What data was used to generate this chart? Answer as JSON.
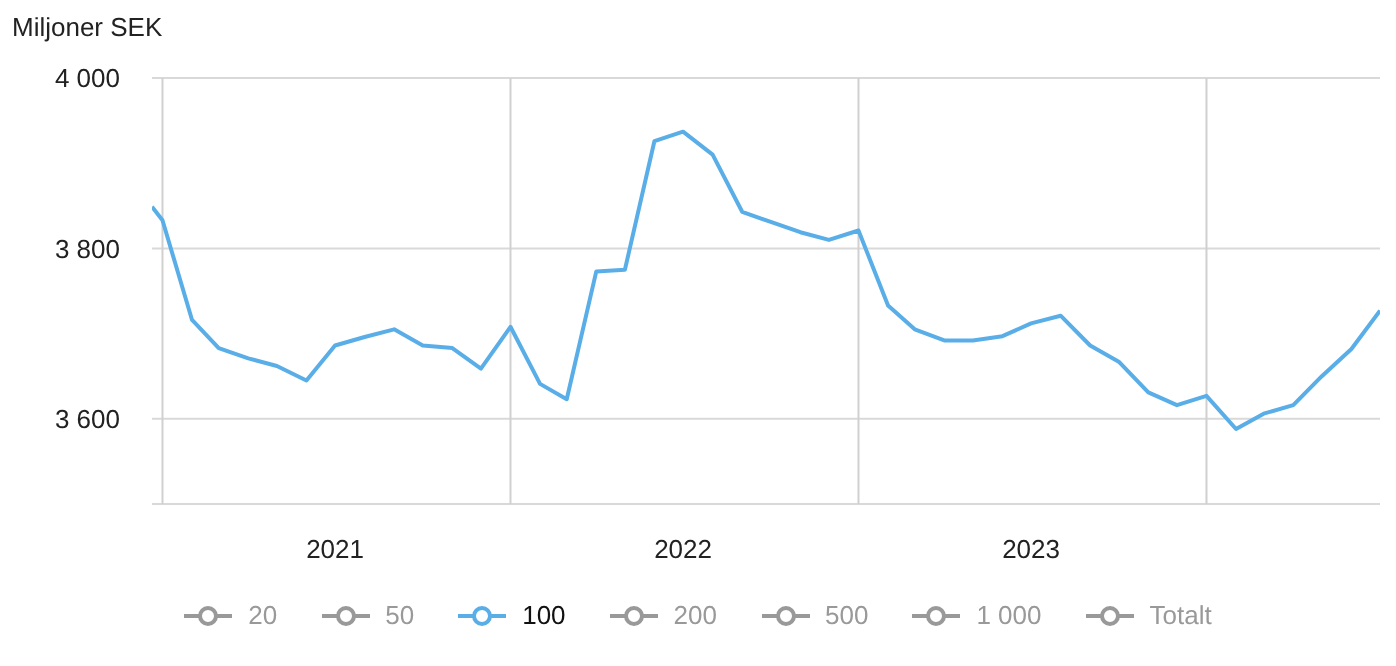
{
  "chart_data": {
    "type": "line",
    "ylabel": "Miljoner SEK",
    "x": [
      "2020-12-21",
      "2021-01",
      "2021-02",
      "2021-03",
      "2021-04",
      "2021-05",
      "2021-06",
      "2021-07",
      "2021-08",
      "2021-09",
      "2021-10",
      "2021-11",
      "2021-12",
      "2022-01",
      "2022-02",
      "2022-03",
      "2022-04",
      "2022-05",
      "2022-06",
      "2022-07",
      "2022-08",
      "2022-09",
      "2022-10",
      "2022-11",
      "2022-12",
      "2023-01",
      "2023-02",
      "2023-03",
      "2023-04",
      "2023-05",
      "2023-06",
      "2023-07",
      "2023-08",
      "2023-09",
      "2023-10",
      "2023-11",
      "2023-12",
      "2024-01",
      "2024-02",
      "2024-03",
      "2024-04",
      "2024-05",
      "2024-06",
      "2024-07"
    ],
    "series": [
      {
        "name": "20",
        "color": "#999999",
        "values": [
          null,
          null,
          null,
          null,
          null,
          null,
          null,
          null,
          null,
          null,
          null,
          null,
          null,
          null,
          null,
          null,
          null,
          null,
          null,
          null,
          null,
          null,
          null,
          null,
          null,
          null,
          null,
          null,
          null,
          null,
          null,
          null,
          null,
          null,
          null,
          null,
          null,
          null,
          null,
          null,
          null,
          null,
          null,
          null
        ]
      },
      {
        "name": "50",
        "color": "#999999",
        "values": [
          null,
          null,
          null,
          null,
          null,
          null,
          null,
          null,
          null,
          null,
          null,
          null,
          null,
          null,
          null,
          null,
          null,
          null,
          null,
          null,
          null,
          null,
          null,
          null,
          null,
          null,
          null,
          null,
          null,
          null,
          null,
          null,
          null,
          null,
          null,
          null,
          null,
          null,
          null,
          null,
          null,
          null,
          null,
          null
        ]
      },
      {
        "name": "100",
        "color": "#5aaee8",
        "values": [
          3849,
          3833,
          3716,
          3683,
          3671,
          3662,
          3645,
          3686,
          3696,
          3705,
          3686,
          3683,
          3659,
          3708,
          3641,
          3623,
          3773,
          3775,
          3926,
          3937,
          3910,
          3843,
          3831,
          3819,
          3810,
          3821,
          3733,
          3705,
          3692,
          3692,
          3697,
          3712,
          3721,
          3686,
          3667,
          3631,
          3616,
          3627,
          3588,
          3606,
          3616,
          3650,
          3682,
          3727
        ]
      },
      {
        "name": "200",
        "color": "#999999",
        "values": [
          null,
          null,
          null,
          null,
          null,
          null,
          null,
          null,
          null,
          null,
          null,
          null,
          null,
          null,
          null,
          null,
          null,
          null,
          null,
          null,
          null,
          null,
          null,
          null,
          null,
          null,
          null,
          null,
          null,
          null,
          null,
          null,
          null,
          null,
          null,
          null,
          null,
          null,
          null,
          null,
          null,
          null,
          null,
          null
        ]
      },
      {
        "name": "500",
        "color": "#999999",
        "values": [
          null,
          null,
          null,
          null,
          null,
          null,
          null,
          null,
          null,
          null,
          null,
          null,
          null,
          null,
          null,
          null,
          null,
          null,
          null,
          null,
          null,
          null,
          null,
          null,
          null,
          null,
          null,
          null,
          null,
          null,
          null,
          null,
          null,
          null,
          null,
          null,
          null,
          null,
          null,
          null,
          null,
          null,
          null,
          null
        ]
      },
      {
        "name": "1 000",
        "color": "#999999",
        "values": [
          null,
          null,
          null,
          null,
          null,
          null,
          null,
          null,
          null,
          null,
          null,
          null,
          null,
          null,
          null,
          null,
          null,
          null,
          null,
          null,
          null,
          null,
          null,
          null,
          null,
          null,
          null,
          null,
          null,
          null,
          null,
          null,
          null,
          null,
          null,
          null,
          null,
          null,
          null,
          null,
          null,
          null,
          null,
          null
        ]
      },
      {
        "name": "Totalt",
        "color": "#999999",
        "values": [
          null,
          null,
          null,
          null,
          null,
          null,
          null,
          null,
          null,
          null,
          null,
          null,
          null,
          null,
          null,
          null,
          null,
          null,
          null,
          null,
          null,
          null,
          null,
          null,
          null,
          null,
          null,
          null,
          null,
          null,
          null,
          null,
          null,
          null,
          null,
          null,
          null,
          null,
          null,
          null,
          null,
          null,
          null,
          null
        ]
      }
    ],
    "xlim": [
      "2020-12-21",
      "2024-07"
    ],
    "xticks": [
      {
        "value": "2021-01",
        "label": null
      },
      {
        "value": "2021-07",
        "label": "2021"
      },
      {
        "value": "2022-01",
        "label": null
      },
      {
        "value": "2022-07",
        "label": "2022"
      },
      {
        "value": "2023-01",
        "label": null
      },
      {
        "value": "2023-07",
        "label": "2023"
      },
      {
        "value": "2024-01",
        "label": null
      }
    ],
    "ylim": [
      3500,
      4000
    ],
    "yticks": [
      {
        "value": 3600,
        "label": "3 600"
      },
      {
        "value": 3800,
        "label": "3 800"
      },
      {
        "value": 4000,
        "label": "4 000"
      }
    ],
    "grid": true,
    "legend": "bottom",
    "marker": "none",
    "line_style": "solid"
  }
}
